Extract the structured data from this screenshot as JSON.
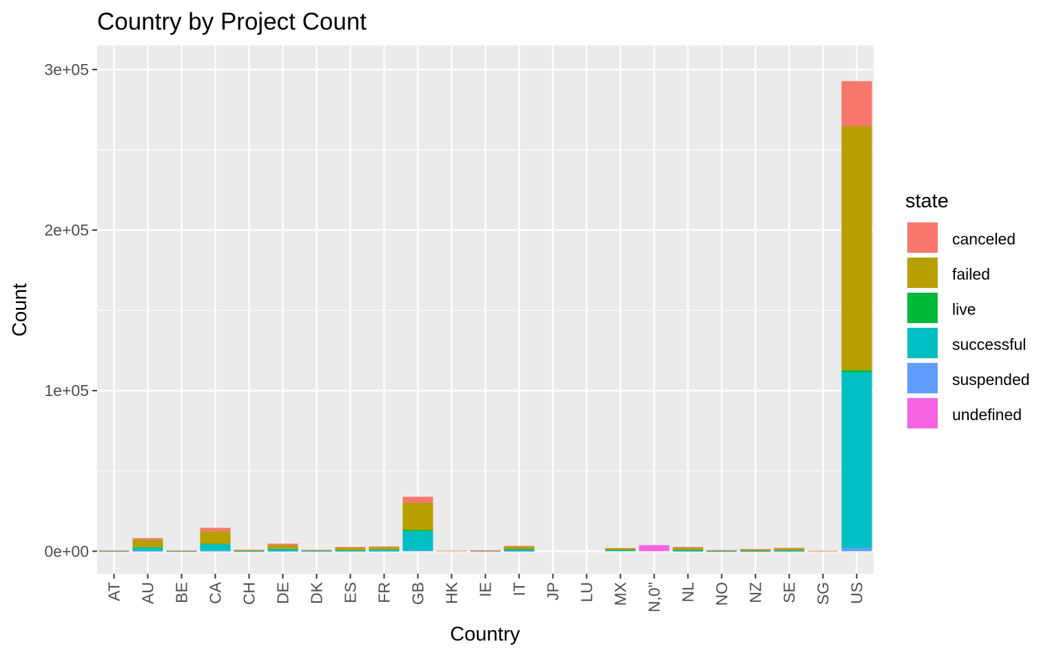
{
  "chart_data": {
    "type": "bar",
    "stacked": true,
    "title": "Country by Project Count",
    "xlabel": "Country",
    "ylabel": "Count",
    "categories": [
      "AT",
      "AU",
      "BE",
      "CA",
      "CH",
      "DE",
      "DK",
      "ES",
      "FR",
      "GB",
      "HK",
      "IE",
      "IT",
      "JP",
      "LU",
      "MX",
      "N,0\"",
      "NL",
      "NO",
      "NZ",
      "SE",
      "SG",
      "US"
    ],
    "y_tick_values": [
      0,
      100000,
      200000,
      300000
    ],
    "y_tick_labels": [
      "0e+00",
      "1e+05",
      "2e+05",
      "3e+05"
    ],
    "ylim": [
      -14000,
      315000
    ],
    "grid": true,
    "legend": {
      "title": "state",
      "position": "right"
    },
    "series": [
      {
        "name": "suspended",
        "color": "#619CFF",
        "values": [
          15,
          180,
          9,
          219,
          25,
          90,
          8,
          49,
          59,
          365,
          0,
          13,
          79,
          0,
          0,
          0,
          0,
          58,
          8,
          13,
          18,
          0,
          2000
        ]
      },
      {
        "name": "successful",
        "color": "#00BFC4",
        "values": [
          185,
          2010,
          152,
          4134,
          187,
          1252,
          387,
          491,
          908,
          12067,
          0,
          0,
          1000,
          0,
          0,
          600,
          0,
          612,
          205,
          300,
          500,
          0,
          109300
        ]
      },
      {
        "name": "live",
        "color": "#00BA38",
        "values": [
          47,
          280,
          20,
          318,
          25,
          187,
          25,
          105,
          122,
          800,
          0,
          0,
          150,
          0,
          0,
          200,
          0,
          100,
          25,
          30,
          100,
          0,
          1500
        ]
      },
      {
        "name": "failed",
        "color": "#B79F00",
        "values": [
          150,
          4700,
          200,
          7800,
          400,
          2300,
          300,
          1600,
          1500,
          17000,
          300,
          400,
          1700,
          0,
          0,
          900,
          0,
          1500,
          300,
          700,
          1200,
          200,
          152000
        ]
      },
      {
        "name": "canceled",
        "color": "#F8766D",
        "values": [
          100,
          1000,
          100,
          2100,
          300,
          900,
          100,
          400,
          400,
          3700,
          100,
          200,
          400,
          0,
          0,
          300,
          0,
          400,
          200,
          300,
          300,
          100,
          28000
        ]
      },
      {
        "name": "undefined",
        "color": "#F564E3",
        "values": [
          0,
          0,
          0,
          0,
          0,
          0,
          0,
          0,
          0,
          0,
          0,
          0,
          0,
          0,
          0,
          0,
          3797,
          0,
          0,
          0,
          0,
          0,
          0
        ]
      }
    ],
    "legend_order": [
      "canceled",
      "failed",
      "live",
      "successful",
      "suspended",
      "undefined"
    ]
  }
}
